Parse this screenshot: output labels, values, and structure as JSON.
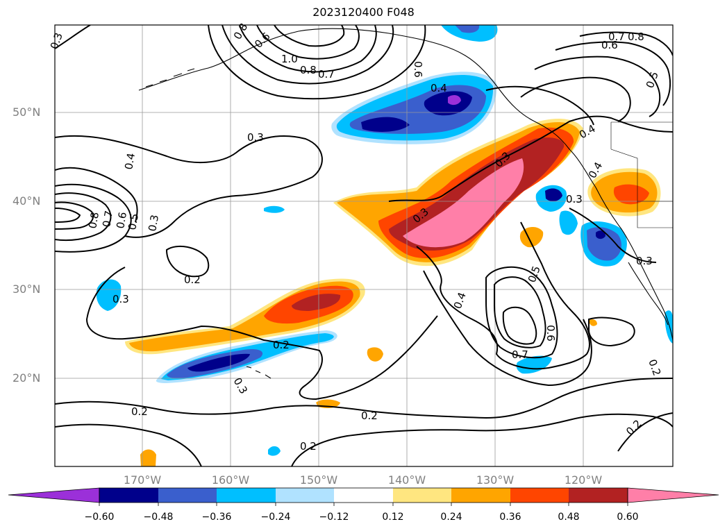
{
  "title": "2023120400 F048",
  "lat_labels": [
    "50°N",
    "40°N",
    "30°N",
    "20°N"
  ],
  "lon_labels": [
    "170°W",
    "160°W",
    "150°W",
    "140°W",
    "130°W",
    "120°W"
  ],
  "colorbar": {
    "ticks": [
      "−0.60",
      "−0.48",
      "−0.36",
      "−0.24",
      "−0.12",
      "0.12",
      "0.24",
      "0.36",
      "0.48",
      "0.60"
    ],
    "colors": [
      "#9b30d9",
      "#00008b",
      "#3a5fcd",
      "#00bfff",
      "#b0e2ff",
      "#ffffff",
      "#ffe680",
      "#ffa500",
      "#ff4500",
      "#b22222",
      "#ff7fa8"
    ]
  },
  "contour_labels": [
    "0.3",
    "0.8",
    "0.6",
    "1.0",
    "0.8",
    "0.7",
    "0.7",
    "0.8",
    "0.6",
    "0.6",
    "0.5",
    "0.4",
    "0.3",
    "0.4",
    "0.8",
    "0.7",
    "0.6",
    "0.5",
    "0.3",
    "0.3",
    "0.2",
    "0.3",
    "0.2",
    "0.3",
    "0.3",
    "0.4",
    "0.5",
    "0.6",
    "0.7",
    "0.3",
    "0.2",
    "0.2",
    "0.2",
    "0.2",
    "0.2",
    "0.3",
    "0.4",
    "0.4"
  ]
}
